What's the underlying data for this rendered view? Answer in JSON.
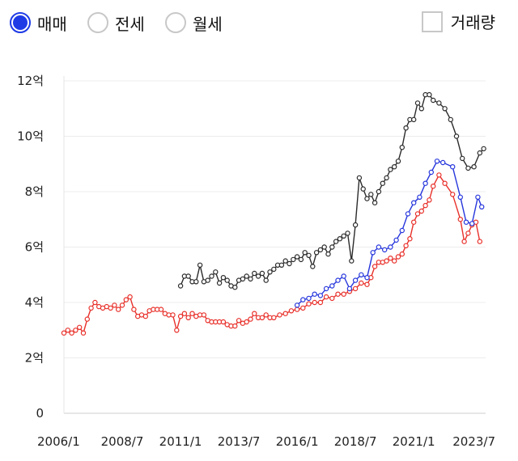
{
  "controls": {
    "options": [
      {
        "label": "매매",
        "selected": true
      },
      {
        "label": "전세",
        "selected": false
      },
      {
        "label": "월세",
        "selected": false
      }
    ],
    "volume_label": "거래량",
    "volume_checked": false,
    "accent_color": "#1e3be6"
  },
  "chart_data": {
    "type": "line",
    "x_ticks": [
      "2006/1",
      "2008/7",
      "2011/1",
      "2013/7",
      "2016/1",
      "2018/7",
      "2021/1",
      "2023/7"
    ],
    "y_ticks": [
      "0",
      "2억",
      "4억",
      "6억",
      "8억",
      "10억",
      "12억"
    ],
    "ylim": [
      0,
      12
    ],
    "xlim": [
      "2006/1",
      "2024/2"
    ],
    "grid": true,
    "legend": "none",
    "series": [
      {
        "color": "#e8302a",
        "points": [
          [
            "2006/1",
            2.9
          ],
          [
            "2006/3",
            3.0
          ],
          [
            "2006/5",
            2.9
          ],
          [
            "2006/7",
            3.0
          ],
          [
            "2006/9",
            3.1
          ],
          [
            "2006/11",
            2.9
          ],
          [
            "2007/1",
            3.4
          ],
          [
            "2007/3",
            3.8
          ],
          [
            "2007/5",
            4.0
          ],
          [
            "2007/7",
            3.85
          ],
          [
            "2007/9",
            3.8
          ],
          [
            "2007/11",
            3.85
          ],
          [
            "2008/1",
            3.8
          ],
          [
            "2008/3",
            3.9
          ],
          [
            "2008/5",
            3.75
          ],
          [
            "2008/7",
            3.9
          ],
          [
            "2008/9",
            4.1
          ],
          [
            "2008/11",
            4.2
          ],
          [
            "2009/1",
            3.75
          ],
          [
            "2009/3",
            3.5
          ],
          [
            "2009/5",
            3.55
          ],
          [
            "2009/7",
            3.5
          ],
          [
            "2009/9",
            3.7
          ],
          [
            "2009/11",
            3.75
          ],
          [
            "2010/1",
            3.75
          ],
          [
            "2010/3",
            3.75
          ],
          [
            "2010/5",
            3.6
          ],
          [
            "2010/7",
            3.55
          ],
          [
            "2010/9",
            3.55
          ],
          [
            "2010/11",
            3.0
          ],
          [
            "2011/1",
            3.5
          ],
          [
            "2011/3",
            3.6
          ],
          [
            "2011/5",
            3.45
          ],
          [
            "2011/7",
            3.6
          ],
          [
            "2011/9",
            3.5
          ],
          [
            "2011/11",
            3.55
          ],
          [
            "2012/1",
            3.55
          ],
          [
            "2012/3",
            3.35
          ],
          [
            "2012/5",
            3.3
          ],
          [
            "2012/7",
            3.3
          ],
          [
            "2012/9",
            3.3
          ],
          [
            "2012/11",
            3.3
          ],
          [
            "2013/1",
            3.2
          ],
          [
            "2013/3",
            3.15
          ],
          [
            "2013/5",
            3.15
          ],
          [
            "2013/7",
            3.35
          ],
          [
            "2013/9",
            3.25
          ],
          [
            "2013/11",
            3.3
          ],
          [
            "2014/1",
            3.4
          ],
          [
            "2014/3",
            3.6
          ],
          [
            "2014/5",
            3.45
          ],
          [
            "2014/7",
            3.45
          ],
          [
            "2014/9",
            3.55
          ],
          [
            "2014/11",
            3.45
          ],
          [
            "2015/1",
            3.45
          ],
          [
            "2015/4",
            3.55
          ],
          [
            "2015/7",
            3.6
          ],
          [
            "2015/10",
            3.7
          ],
          [
            "2016/1",
            3.75
          ],
          [
            "2016/4",
            3.8
          ],
          [
            "2016/7",
            3.95
          ],
          [
            "2016/10",
            4.0
          ],
          [
            "2017/1",
            4.0
          ],
          [
            "2017/4",
            4.2
          ],
          [
            "2017/7",
            4.15
          ],
          [
            "2017/10",
            4.3
          ],
          [
            "2018/1",
            4.3
          ],
          [
            "2018/4",
            4.4
          ],
          [
            "2018/7",
            4.5
          ],
          [
            "2018/10",
            4.7
          ],
          [
            "2019/1",
            4.65
          ],
          [
            "2019/3",
            4.9
          ],
          [
            "2019/5",
            5.3
          ],
          [
            "2019/7",
            5.45
          ],
          [
            "2019/9",
            5.45
          ],
          [
            "2019/11",
            5.5
          ],
          [
            "2020/1",
            5.6
          ],
          [
            "2020/3",
            5.5
          ],
          [
            "2020/5",
            5.65
          ],
          [
            "2020/7",
            5.75
          ],
          [
            "2020/9",
            6.05
          ],
          [
            "2020/11",
            6.3
          ],
          [
            "2021/1",
            6.9
          ],
          [
            "2021/3",
            7.2
          ],
          [
            "2021/5",
            7.3
          ],
          [
            "2021/7",
            7.5
          ],
          [
            "2021/9",
            7.7
          ],
          [
            "2021/11",
            8.2
          ],
          [
            "2022/2",
            8.6
          ],
          [
            "2022/5",
            8.3
          ],
          [
            "2022/9",
            7.9
          ],
          [
            "2023/1",
            7.0
          ],
          [
            "2023/3",
            6.2
          ],
          [
            "2023/5",
            6.5
          ],
          [
            "2023/7",
            6.8
          ],
          [
            "2023/9",
            6.9
          ],
          [
            "2023/11",
            6.2
          ]
        ]
      },
      {
        "color": "#2636dc",
        "points": [
          [
            "2016/1",
            3.9
          ],
          [
            "2016/4",
            4.1
          ],
          [
            "2016/7",
            4.15
          ],
          [
            "2016/10",
            4.3
          ],
          [
            "2017/1",
            4.25
          ],
          [
            "2017/4",
            4.5
          ],
          [
            "2017/7",
            4.6
          ],
          [
            "2017/10",
            4.8
          ],
          [
            "2018/1",
            4.95
          ],
          [
            "2018/4",
            4.5
          ],
          [
            "2018/7",
            4.8
          ],
          [
            "2018/10",
            5.0
          ],
          [
            "2019/1",
            4.9
          ],
          [
            "2019/4",
            5.8
          ],
          [
            "2019/7",
            6.0
          ],
          [
            "2019/10",
            5.9
          ],
          [
            "2020/1",
            6.0
          ],
          [
            "2020/4",
            6.25
          ],
          [
            "2020/7",
            6.6
          ],
          [
            "2020/10",
            7.2
          ],
          [
            "2021/1",
            7.6
          ],
          [
            "2021/4",
            7.8
          ],
          [
            "2021/7",
            8.3
          ],
          [
            "2021/10",
            8.7
          ],
          [
            "2022/1",
            9.1
          ],
          [
            "2022/4",
            9.05
          ],
          [
            "2022/9",
            8.9
          ],
          [
            "2023/1",
            7.8
          ],
          [
            "2023/4",
            6.9
          ],
          [
            "2023/7",
            6.85
          ],
          [
            "2023/10",
            7.8
          ],
          [
            "2023/12",
            7.45
          ]
        ]
      },
      {
        "color": "#2b2b2b",
        "points": [
          [
            "2011/1",
            4.6
          ],
          [
            "2011/3",
            4.95
          ],
          [
            "2011/5",
            4.95
          ],
          [
            "2011/7",
            4.75
          ],
          [
            "2011/9",
            4.75
          ],
          [
            "2011/11",
            5.35
          ],
          [
            "2012/1",
            4.75
          ],
          [
            "2012/3",
            4.8
          ],
          [
            "2012/5",
            4.95
          ],
          [
            "2012/7",
            5.1
          ],
          [
            "2012/9",
            4.7
          ],
          [
            "2012/11",
            4.9
          ],
          [
            "2013/1",
            4.8
          ],
          [
            "2013/3",
            4.6
          ],
          [
            "2013/5",
            4.55
          ],
          [
            "2013/7",
            4.8
          ],
          [
            "2013/9",
            4.85
          ],
          [
            "2013/11",
            4.95
          ],
          [
            "2014/1",
            4.85
          ],
          [
            "2014/3",
            5.05
          ],
          [
            "2014/5",
            4.95
          ],
          [
            "2014/7",
            5.05
          ],
          [
            "2014/9",
            4.8
          ],
          [
            "2014/11",
            5.1
          ],
          [
            "2015/1",
            5.2
          ],
          [
            "2015/3",
            5.35
          ],
          [
            "2015/5",
            5.35
          ],
          [
            "2015/7",
            5.5
          ],
          [
            "2015/9",
            5.4
          ],
          [
            "2015/11",
            5.55
          ],
          [
            "2016/1",
            5.65
          ],
          [
            "2016/3",
            5.55
          ],
          [
            "2016/5",
            5.8
          ],
          [
            "2016/7",
            5.7
          ],
          [
            "2016/9",
            5.3
          ],
          [
            "2016/11",
            5.8
          ],
          [
            "2017/1",
            5.9
          ],
          [
            "2017/3",
            6.0
          ],
          [
            "2017/5",
            5.75
          ],
          [
            "2017/7",
            6.0
          ],
          [
            "2017/9",
            6.2
          ],
          [
            "2017/11",
            6.3
          ],
          [
            "2018/1",
            6.4
          ],
          [
            "2018/3",
            6.5
          ],
          [
            "2018/5",
            5.5
          ],
          [
            "2018/7",
            6.8
          ],
          [
            "2018/9",
            8.5
          ],
          [
            "2018/11",
            8.1
          ],
          [
            "2019/1",
            7.75
          ],
          [
            "2019/3",
            7.9
          ],
          [
            "2019/5",
            7.6
          ],
          [
            "2019/7",
            8.0
          ],
          [
            "2019/9",
            8.3
          ],
          [
            "2019/11",
            8.5
          ],
          [
            "2020/1",
            8.8
          ],
          [
            "2020/3",
            8.9
          ],
          [
            "2020/5",
            9.1
          ],
          [
            "2020/7",
            9.6
          ],
          [
            "2020/9",
            10.3
          ],
          [
            "2020/11",
            10.6
          ],
          [
            "2021/1",
            10.6
          ],
          [
            "2021/3",
            11.2
          ],
          [
            "2021/5",
            11.0
          ],
          [
            "2021/7",
            11.5
          ],
          [
            "2021/9",
            11.5
          ],
          [
            "2021/11",
            11.3
          ],
          [
            "2022/2",
            11.2
          ],
          [
            "2022/5",
            11.0
          ],
          [
            "2022/8",
            10.6
          ],
          [
            "2022/11",
            10.0
          ],
          [
            "2023/2",
            9.2
          ],
          [
            "2023/5",
            8.85
          ],
          [
            "2023/8",
            8.9
          ],
          [
            "2023/11",
            9.4
          ],
          [
            "2024/1",
            9.55
          ]
        ]
      }
    ]
  }
}
